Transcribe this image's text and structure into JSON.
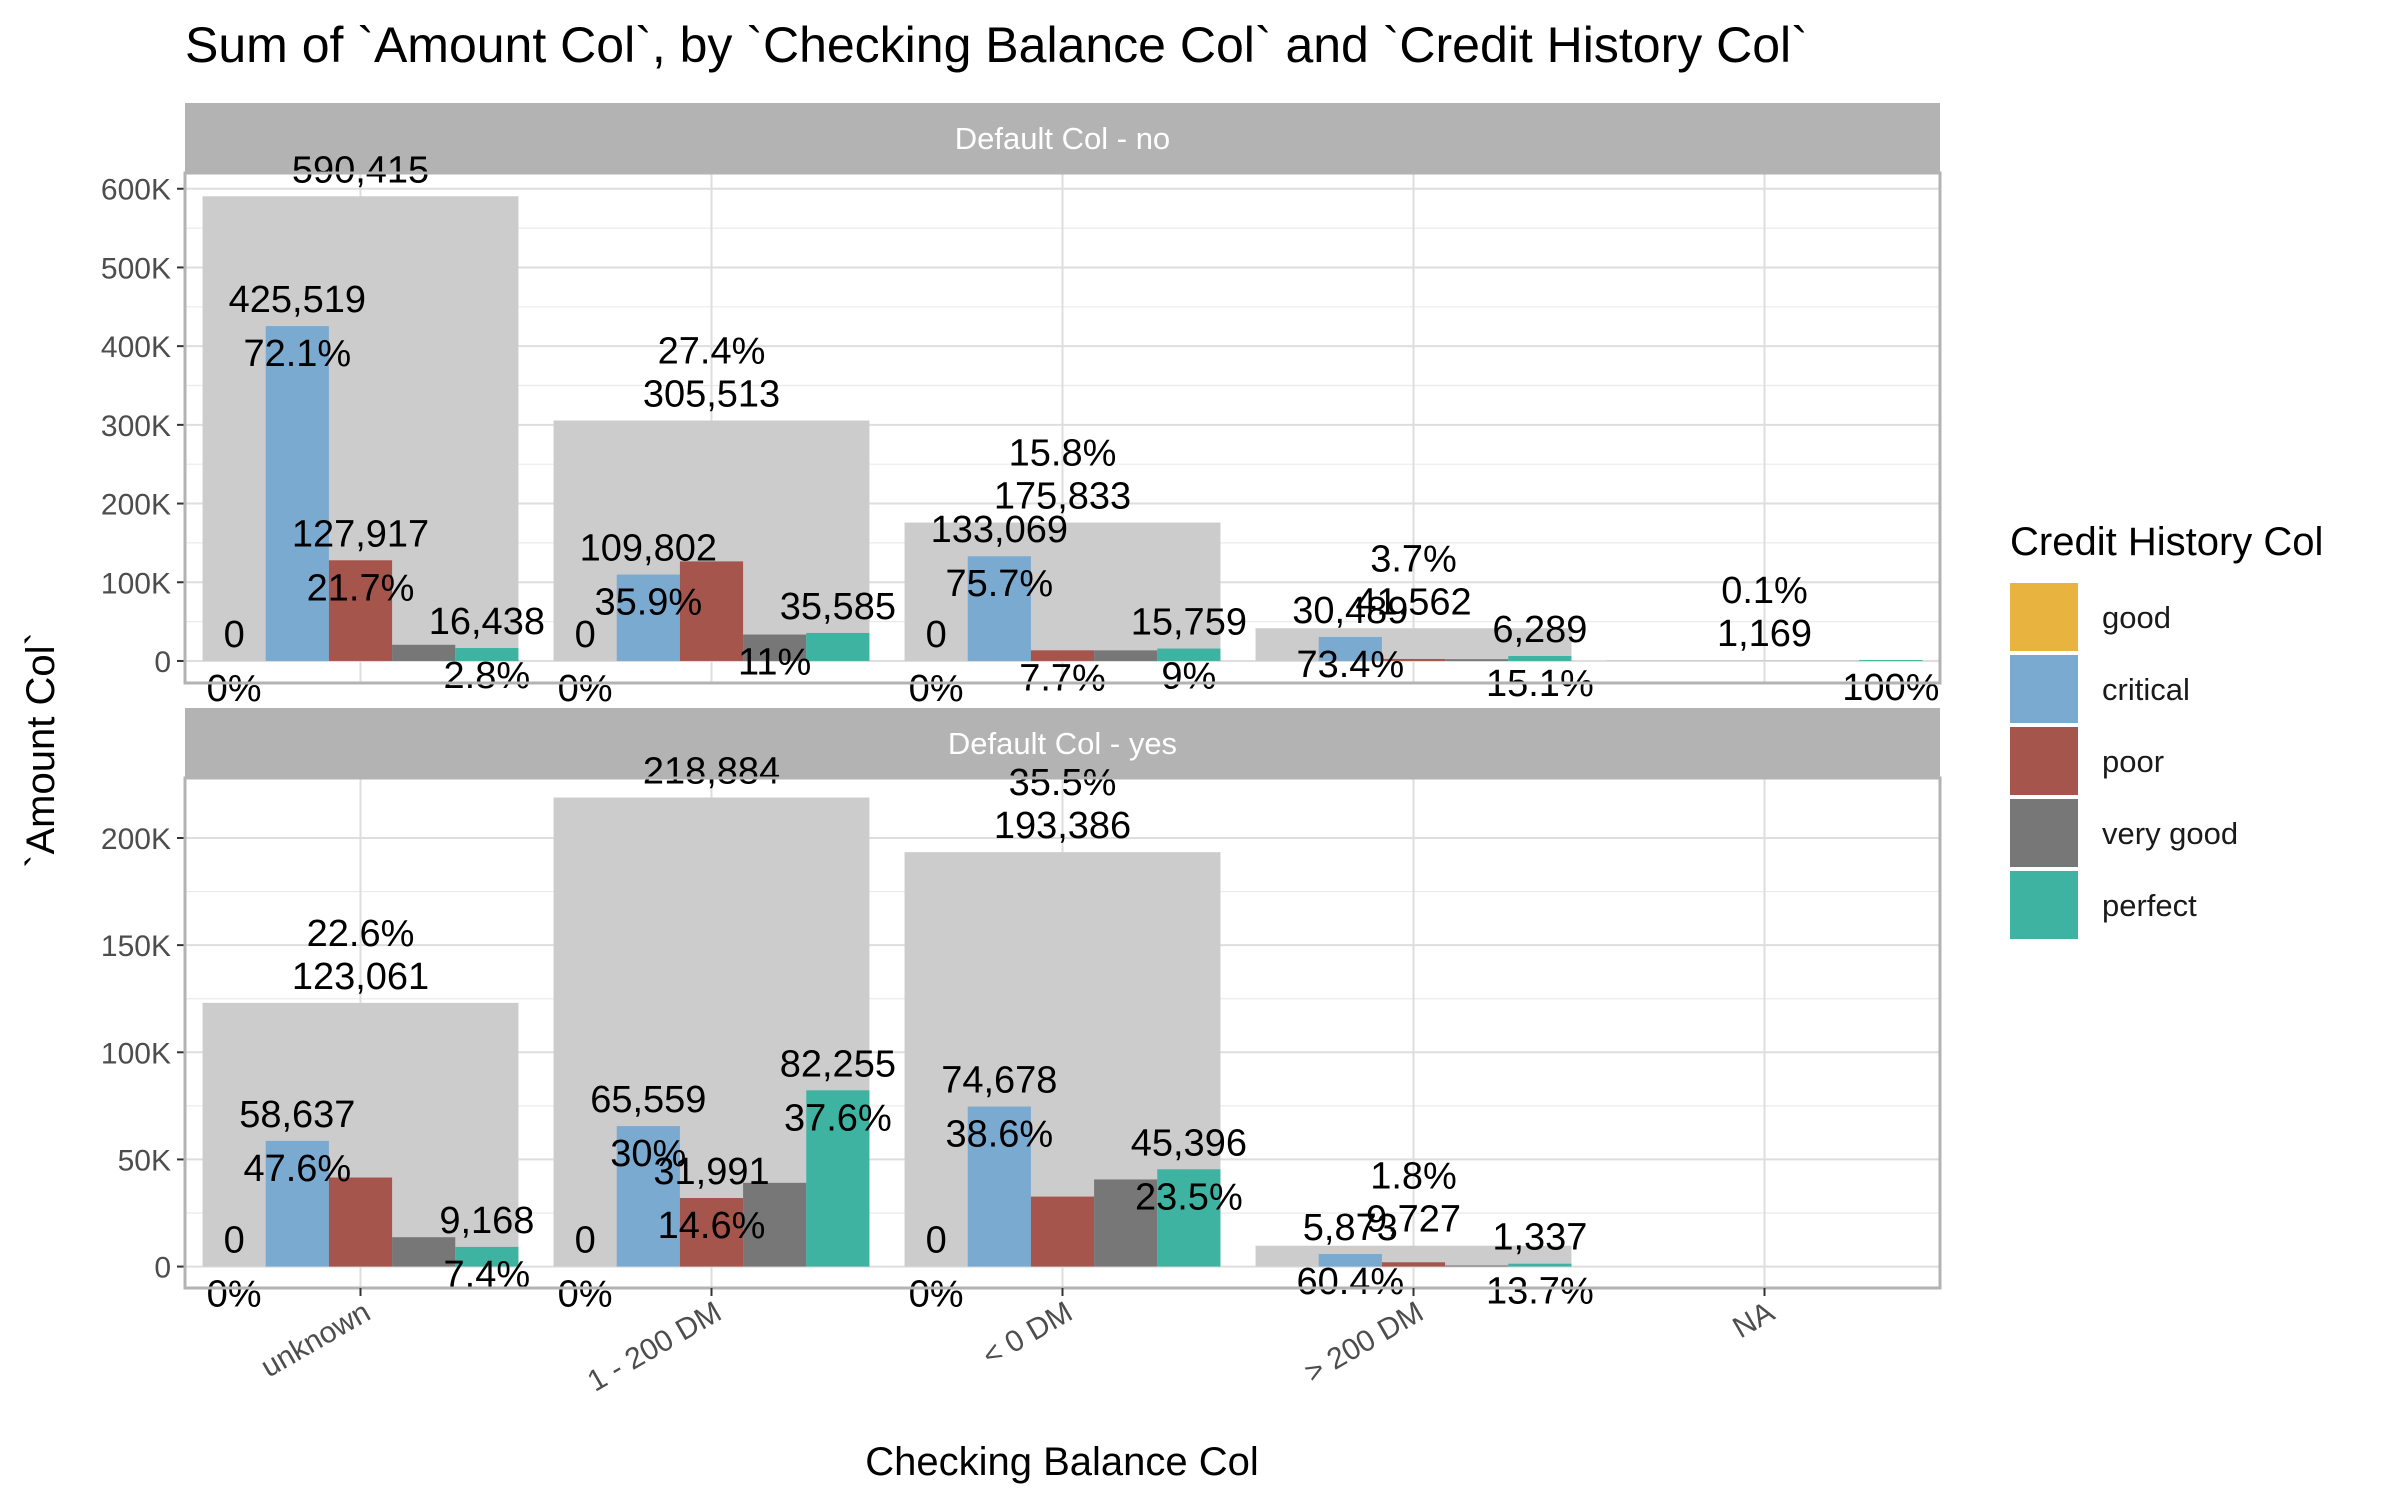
{
  "chart_data": {
    "type": "bar",
    "title": "Sum of `Amount Col`, by `Checking Balance Col` and `Credit History Col`",
    "xlabel": "Checking Balance Col",
    "ylabel": "`Amount Col`",
    "categories": [
      "unknown",
      "1 - 200 DM",
      "< 0 DM",
      "> 200 DM",
      "NA"
    ],
    "legend": {
      "title": "Credit History Col",
      "position": "right",
      "items": [
        {
          "name": "good",
          "color": "#E8B33F"
        },
        {
          "name": "critical",
          "color": "#7BAAD1"
        },
        {
          "name": "poor",
          "color": "#A5554B"
        },
        {
          "name": "very good",
          "color": "#777777"
        },
        {
          "name": "perfect",
          "color": "#3FB3A2"
        }
      ]
    },
    "total_bar_color": "#cccccc",
    "grid": true,
    "panels": [
      {
        "strip": "Default Col - no",
        "ylim": [
          -28000,
          620000
        ],
        "yticks": [
          0,
          100000,
          200000,
          300000,
          400000,
          500000,
          600000
        ],
        "ytick_labels": [
          "0",
          "100K",
          "200K",
          "300K",
          "400K",
          "500K",
          "600K"
        ],
        "groups": [
          {
            "category": "unknown",
            "total": 590415,
            "total_label": "590,415",
            "total_pct": "",
            "values": [
              0,
              425519,
              127917,
              20541,
              16438
            ],
            "value_labels": [
              "0",
              "425,519",
              "127,917",
              "",
              "16,438"
            ],
            "pct_labels": [
              "0%",
              "72.1%",
              "21.7%",
              "",
              "2.8%"
            ]
          },
          {
            "category": "1 - 200 DM",
            "total": 305513,
            "total_label": "305,513",
            "total_pct": "27.4%",
            "values": [
              0,
              109802,
              126535,
              33591,
              35585
            ],
            "value_labels": [
              "0",
              "109,802",
              "",
              "",
              "35,585"
            ],
            "pct_labels": [
              "0%",
              "35.9%",
              "",
              "11%",
              ""
            ]
          },
          {
            "category": "< 0 DM",
            "total": 175833,
            "total_label": "175,833",
            "total_pct": "15.8%",
            "values": [
              0,
              133069,
              13541,
              13464,
              15759
            ],
            "value_labels": [
              "0",
              "133,069",
              "",
              "",
              "15,759"
            ],
            "pct_labels": [
              "0%",
              "75.7%",
              "7.7%",
              "",
              "9%"
            ]
          },
          {
            "category": "> 200 DM",
            "total": 41562,
            "total_label": "41,562",
            "total_pct": "3.7%",
            "values": [
              0,
              30489,
              2500,
              2284,
              6289
            ],
            "value_labels": [
              "",
              "30,489",
              "",
              "",
              "6,289"
            ],
            "pct_labels": [
              "",
              "73.4%",
              "",
              "",
              "15.1%"
            ]
          },
          {
            "category": "NA",
            "total": 1169,
            "total_label": "1,169",
            "total_pct": "0.1%",
            "values": [
              0,
              0,
              0,
              0,
              1169
            ],
            "value_labels": [
              "",
              "",
              "",
              "",
              ""
            ],
            "pct_labels": [
              "",
              "",
              "",
              "",
              "100%"
            ]
          }
        ]
      },
      {
        "strip": "Default Col - yes",
        "ylim": [
          -10000,
          228000
        ],
        "yticks": [
          0,
          50000,
          100000,
          150000,
          200000
        ],
        "ytick_labels": [
          "0",
          "50K",
          "100K",
          "150K",
          "200K"
        ],
        "groups": [
          {
            "category": "unknown",
            "total": 123061,
            "total_label": "123,061",
            "total_pct": "22.6%",
            "values": [
              0,
              58637,
              41548,
              13708,
              9168
            ],
            "value_labels": [
              "0",
              "58,637",
              "",
              "",
              "9,168"
            ],
            "pct_labels": [
              "0%",
              "47.6%",
              "",
              "",
              "7.4%"
            ]
          },
          {
            "category": "1 - 200 DM",
            "total": 218884,
            "total_label": "218,884",
            "total_pct": "",
            "values": [
              0,
              65559,
              31991,
              39079,
              82255
            ],
            "value_labels": [
              "0",
              "65,559",
              "31,991",
              "",
              "82,255"
            ],
            "pct_labels": [
              "0%",
              "30%",
              "14.6%",
              "",
              "37.6%"
            ]
          },
          {
            "category": "< 0 DM",
            "total": 193386,
            "total_label": "193,386",
            "total_pct": "35.5%",
            "values": [
              0,
              74678,
              32655,
              40657,
              45396
            ],
            "value_labels": [
              "0",
              "74,678",
              "",
              "",
              "45,396"
            ],
            "pct_labels": [
              "0%",
              "38.6%",
              "",
              "",
              "23.5%"
            ]
          },
          {
            "category": "> 200 DM",
            "total": 9727,
            "total_label": "9,727",
            "total_pct": "1.8%",
            "values": [
              0,
              5873,
              2000,
              517,
              1337
            ],
            "value_labels": [
              "",
              "5,873",
              "",
              "",
              "1,337"
            ],
            "pct_labels": [
              "",
              "60.4%",
              "",
              "",
              "13.7%"
            ]
          },
          {
            "category": "NA",
            "total": 0,
            "total_label": "",
            "total_pct": "",
            "values": [
              0,
              0,
              0,
              0,
              0
            ],
            "value_labels": [
              "",
              "",
              "",
              "",
              ""
            ],
            "pct_labels": [
              "",
              "",
              "",
              "",
              ""
            ]
          }
        ]
      }
    ]
  }
}
